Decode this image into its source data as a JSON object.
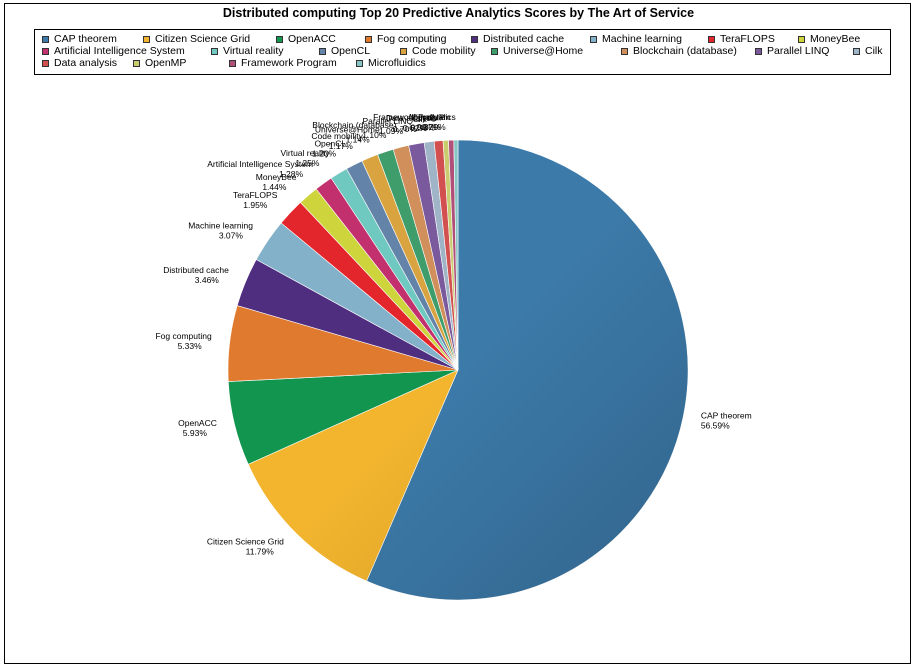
{
  "chart_data": {
    "type": "pie",
    "title": "Distributed computing Top 20 Predictive Analytics Scores by The Art of Service",
    "legend_position": "top",
    "slices": [
      {
        "label": "CAP theorem",
        "value": 56.59,
        "pct_label": "56.59%",
        "color": "#3c7aa9"
      },
      {
        "label": "Citizen Science Grid",
        "value": 11.79,
        "pct_label": "11.79%",
        "color": "#f3b52e"
      },
      {
        "label": "OpenACC",
        "value": 5.93,
        "pct_label": "5.93%",
        "color": "#12954e"
      },
      {
        "label": "Fog computing",
        "value": 5.33,
        "pct_label": "5.33%",
        "color": "#e07a2f"
      },
      {
        "label": "Distributed cache",
        "value": 3.46,
        "pct_label": "3.46%",
        "color": "#4f2d7f"
      },
      {
        "label": "Machine learning",
        "value": 3.07,
        "pct_label": "3.07%",
        "color": "#83b1ca"
      },
      {
        "label": "TeraFLOPS",
        "value": 1.95,
        "pct_label": "1.95%",
        "color": "#e3262c"
      },
      {
        "label": "MoneyBee",
        "value": 1.44,
        "pct_label": "1.44%",
        "color": "#cdd43c"
      },
      {
        "label": "Artificial Intelligence System",
        "value": 1.28,
        "pct_label": "1.28%",
        "color": "#c2306d"
      },
      {
        "label": "Virtual reality",
        "value": 1.25,
        "pct_label": "1.25%",
        "color": "#70c9c0"
      },
      {
        "label": "OpenCL",
        "value": 1.2,
        "pct_label": "1.20%",
        "color": "#6383a8"
      },
      {
        "label": "Code mobility",
        "value": 1.17,
        "pct_label": "1.17%",
        "color": "#d9a440"
      },
      {
        "label": "Universe@Home",
        "value": 1.14,
        "pct_label": "1.14%",
        "color": "#3f9c6b"
      },
      {
        "label": "Blockchain (database)",
        "value": 1.1,
        "pct_label": "1.10%",
        "color": "#d08f5b"
      },
      {
        "label": "Parallel LINQ",
        "value": 1.09,
        "pct_label": "1.09%",
        "color": "#7a5a9c"
      },
      {
        "label": "Cilk",
        "value": 0.7,
        "pct_label": "0.70%",
        "color": "#9fb4c7"
      },
      {
        "label": "Data analysis",
        "value": 0.62,
        "pct_label": "0.62%",
        "color": "#d2504f"
      },
      {
        "label": "OpenMP",
        "value": 0.38,
        "pct_label": "0.38%",
        "color": "#c9cc6f"
      },
      {
        "label": "Framework Program",
        "value": 0.37,
        "pct_label": "0.37%",
        "color": "#b04f78"
      },
      {
        "label": "Microfluidics",
        "value": 0.29,
        "pct_label": "0.29%",
        "color": "#86c5c3"
      }
    ]
  }
}
